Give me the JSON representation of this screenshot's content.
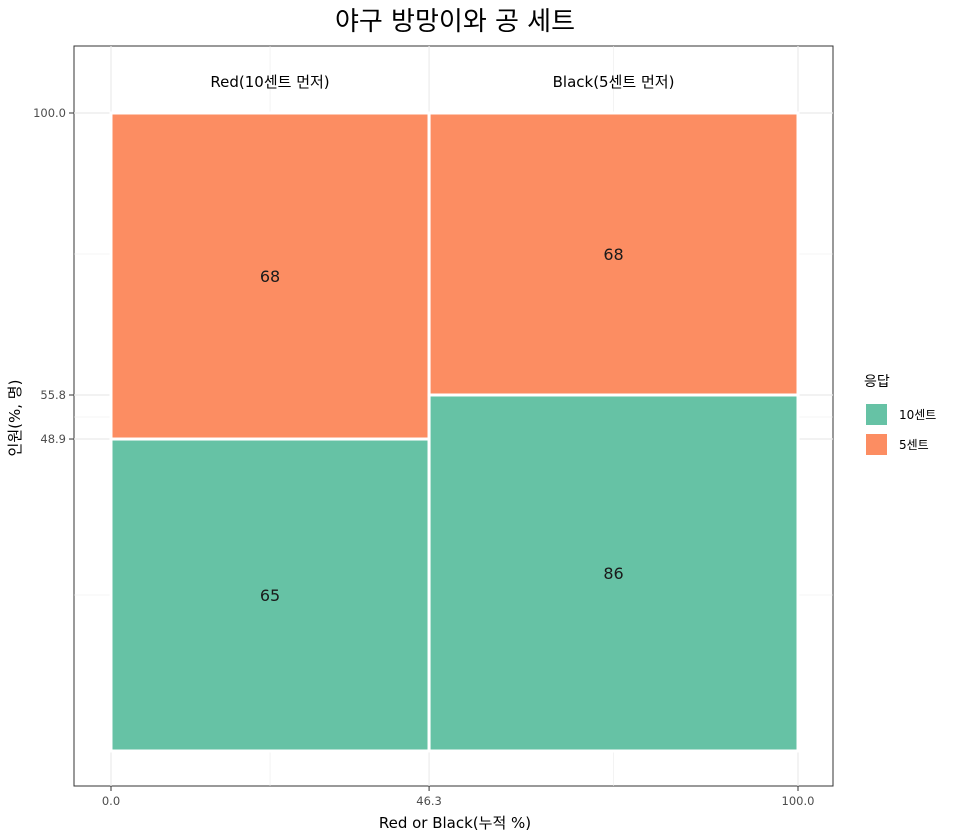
{
  "chart_data": {
    "type": "mosaic",
    "title": "야구 방망이와 공 세트",
    "xlabel": "Red or Black(누적 %)",
    "ylabel": "인원(%, 명)",
    "xlim": [
      0,
      100
    ],
    "ylim": [
      0,
      100
    ],
    "x_ticks": [
      "0.0",
      "46.3",
      "100.0"
    ],
    "y_ticks": [
      "48.9",
      "55.8",
      "100.0"
    ],
    "x_tick_values": [
      0,
      46.3,
      100
    ],
    "y_tick_values": [
      48.9,
      55.8,
      100
    ],
    "grid": true,
    "legend": {
      "title": "응답",
      "position": "right",
      "entries": [
        {
          "label": "10센트",
          "color": "#66c2a5"
        },
        {
          "label": "5센트",
          "color": "#fc8d62"
        }
      ]
    },
    "columns": [
      {
        "label": "Red(10센트 먼저)",
        "x_start": 0,
        "x_end": 46.3,
        "cells": [
          {
            "response": "10센트",
            "y_start": 0,
            "y_end": 48.9,
            "count": 65,
            "color": "#66c2a5"
          },
          {
            "response": "5센트",
            "y_start": 48.9,
            "y_end": 100,
            "count": 68,
            "color": "#fc8d62"
          }
        ]
      },
      {
        "label": "Black(5센트 먼저)",
        "x_start": 46.3,
        "x_end": 100,
        "cells": [
          {
            "response": "10센트",
            "y_start": 0,
            "y_end": 55.8,
            "count": 86,
            "color": "#66c2a5"
          },
          {
            "response": "5센트",
            "y_start": 55.8,
            "y_end": 100,
            "count": 68,
            "color": "#fc8d62"
          }
        ]
      }
    ]
  }
}
